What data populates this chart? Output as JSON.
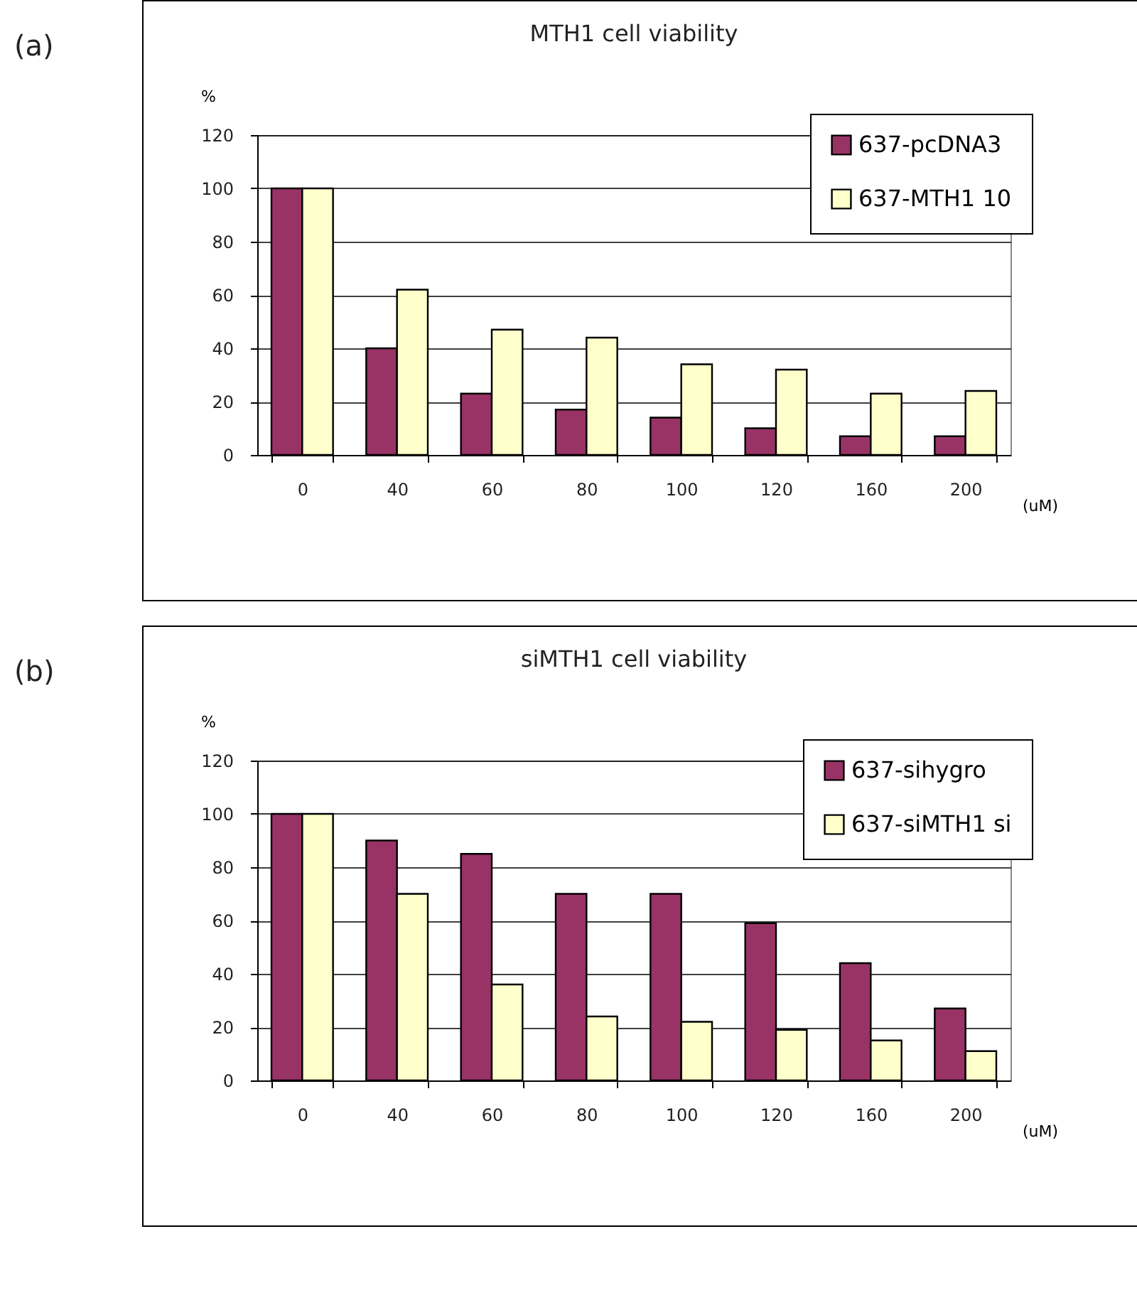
{
  "chart_data": [
    {
      "type": "bar",
      "title": "MTH1 cell viability",
      "ylabel": "%",
      "xlabel": "(uM)",
      "annotations": [
        "(a)"
      ],
      "categories": [
        "0",
        "40",
        "60",
        "80",
        "100",
        "120",
        "160",
        "200"
      ],
      "series": [
        {
          "name": "637-pcDNA3",
          "color": "#993366",
          "values": [
            100,
            40,
            23,
            17,
            14,
            10,
            7,
            7
          ]
        },
        {
          "name": "637-MTH1 10",
          "color": "#ffffcc",
          "values": [
            100,
            62,
            47,
            44,
            34,
            32,
            23,
            24
          ]
        }
      ],
      "ylim": [
        0,
        120
      ],
      "yticks": [
        0,
        20,
        40,
        60,
        80,
        100,
        120
      ],
      "grid": "y",
      "legend": "top right"
    },
    {
      "type": "bar",
      "title": "siMTH1 cell viability",
      "ylabel": "%",
      "xlabel": "(uM)",
      "annotations": [
        "(b)"
      ],
      "categories": [
        "0",
        "40",
        "60",
        "80",
        "100",
        "120",
        "160",
        "200"
      ],
      "series": [
        {
          "name": "637-sihygro",
          "color": "#993366",
          "values": [
            100,
            90,
            85,
            70,
            70,
            59,
            44,
            27
          ]
        },
        {
          "name": "637-siMTH1 si",
          "color": "#ffffcc",
          "values": [
            100,
            70,
            36,
            24,
            22,
            19,
            15,
            11
          ]
        }
      ],
      "ylim": [
        0,
        120
      ],
      "yticks": [
        0,
        20,
        40,
        60,
        80,
        100,
        120
      ],
      "grid": "y",
      "legend": "top right"
    }
  ]
}
